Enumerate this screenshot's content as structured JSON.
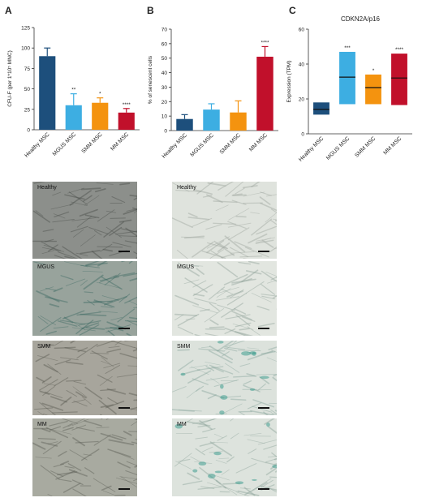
{
  "panels": {
    "a": "A",
    "b": "B",
    "c": "C"
  },
  "chart_data": [
    {
      "type": "bar",
      "panel": "A",
      "title": "",
      "ylabel": "CFU-F (per 1*10⁵ MNC)",
      "ylim": [
        0,
        125
      ],
      "yticks": [
        0,
        25,
        50,
        75,
        100,
        125
      ],
      "categories": [
        "Healthy MSC",
        "MGUS MSC",
        "SMM MSC",
        "MM MSC"
      ],
      "values": [
        90,
        30,
        33,
        21
      ],
      "errors": [
        10,
        14,
        6,
        5
      ],
      "significance": [
        "",
        "**",
        "*",
        "****"
      ],
      "colors": [
        "#1d4f7c",
        "#3daee2",
        "#f4930f",
        "#c1102b"
      ]
    },
    {
      "type": "bar",
      "panel": "B",
      "title": "",
      "ylabel": "% of senescent cells",
      "ylim": [
        0,
        70
      ],
      "yticks": [
        0,
        10,
        20,
        30,
        40,
        50,
        60,
        70
      ],
      "categories": [
        "Healthy MSC",
        "MGUS MSC",
        "SMM MSC",
        "MM MSC"
      ],
      "values": [
        8,
        14.5,
        12.5,
        51
      ],
      "errors": [
        3,
        4,
        8,
        7
      ],
      "significance": [
        "",
        "",
        "",
        "****"
      ],
      "colors": [
        "#1d4f7c",
        "#3daee2",
        "#f4930f",
        "#c1102b"
      ]
    },
    {
      "type": "box",
      "panel": "C",
      "title": "CDKN2A/p16",
      "ylabel": "Expression (TPM)",
      "ylim": [
        0,
        60
      ],
      "yticks": [
        0,
        20,
        40,
        60
      ],
      "categories": [
        "Healthy MSC",
        "MGUS MSC",
        "SMM MSC",
        "MM MSC"
      ],
      "boxes": [
        {
          "low": 11,
          "median": 14,
          "high": 18
        },
        {
          "low": 17,
          "median": 32.5,
          "high": 47
        },
        {
          "low": 17,
          "median": 26.5,
          "high": 34
        },
        {
          "low": 16.5,
          "median": 32,
          "high": 46
        }
      ],
      "significance": [
        "",
        "***",
        "*",
        "****"
      ],
      "colors": [
        "#1d4f7c",
        "#3daee2",
        "#f4930f",
        "#c1102b"
      ]
    }
  ],
  "micrographs": {
    "left": [
      {
        "label": "Healthy"
      },
      {
        "label": "MGUS"
      },
      {
        "label": "SMM"
      },
      {
        "label": "MM"
      }
    ],
    "right": [
      {
        "label": "Healthy"
      },
      {
        "label": "MGUS"
      },
      {
        "label": "SMM"
      },
      {
        "label": "MM"
      }
    ]
  }
}
